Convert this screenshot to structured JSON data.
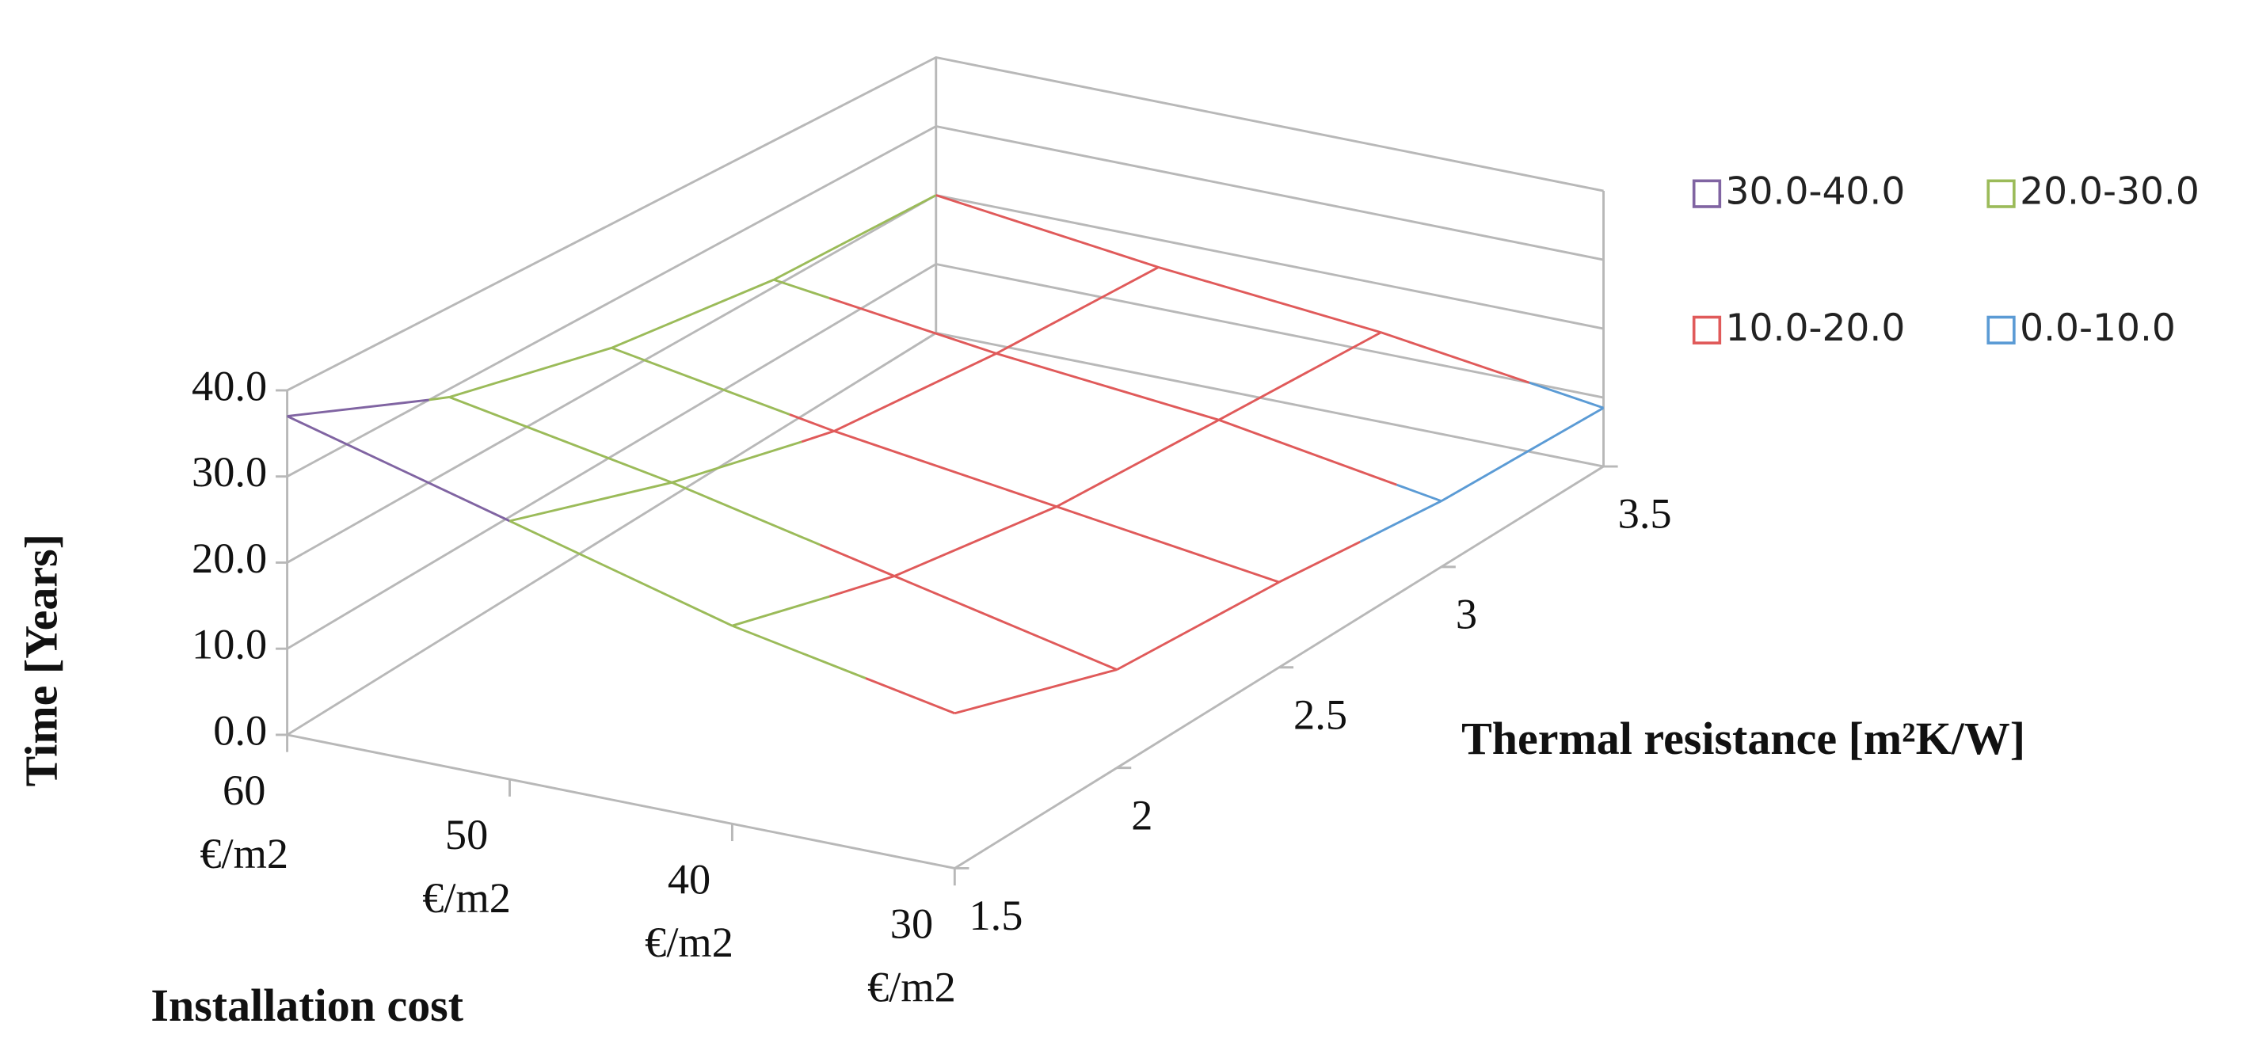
{
  "chart_data": {
    "type": "surface",
    "z_label": "Time [Years]",
    "cost_label": "Installation cost",
    "x_label": "Thermal resistance [m²K/W]",
    "categories": [
      "60 €/m2",
      "50 €/m2",
      "40 €/m2",
      "30 €/m2"
    ],
    "x": [
      1.5,
      2,
      2.5,
      3,
      3.5
    ],
    "xlim": [
      1.5,
      3.5
    ],
    "values": [
      [
        37,
        29,
        24,
        21,
        20
      ],
      [
        30,
        24,
        19,
        17,
        16
      ],
      [
        23,
        18,
        15,
        14,
        13
      ],
      [
        18,
        12,
        11,
        9,
        8.5
      ]
    ],
    "zlim": [
      0,
      40
    ],
    "zticks": [
      {
        "value": 0,
        "label": "0.0"
      },
      {
        "value": 10,
        "label": "10.0"
      },
      {
        "value": 20,
        "label": "20.0"
      },
      {
        "value": 30,
        "label": "30.0"
      },
      {
        "value": 40,
        "label": "40.0"
      }
    ],
    "legend": [
      {
        "name": "30.0-40.0",
        "color": "#8064a2"
      },
      {
        "name": "20.0-30.0",
        "color": "#9bbb59"
      },
      {
        "name": "10.0-20.0",
        "color": "#e05a5a"
      },
      {
        "name": "0.0-10.0",
        "color": "#5b9bd5"
      }
    ],
    "grid": true
  }
}
